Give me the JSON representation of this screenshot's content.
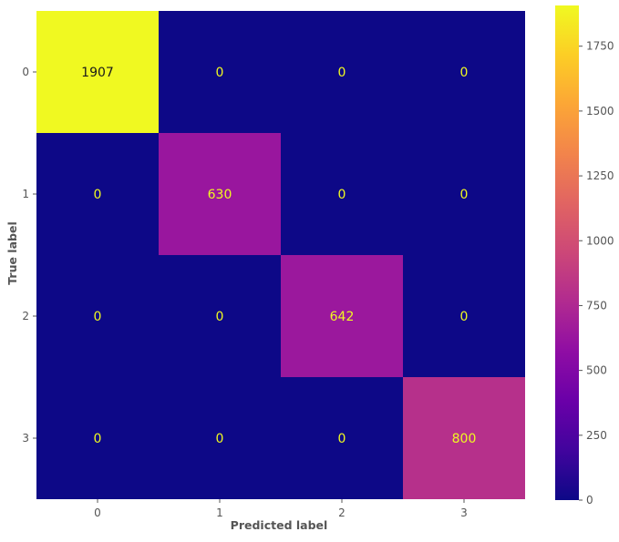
{
  "chart_data": {
    "type": "heatmap",
    "title": "",
    "xlabel": "Predicted label",
    "ylabel": "True label",
    "x_categories": [
      "0",
      "1",
      "2",
      "3"
    ],
    "y_categories": [
      "0",
      "1",
      "2",
      "3"
    ],
    "values": [
      [
        1907,
        0,
        0,
        0
      ],
      [
        0,
        630,
        0,
        0
      ],
      [
        0,
        0,
        642,
        0
      ],
      [
        0,
        0,
        0,
        800
      ]
    ],
    "colormap": "plasma",
    "color_range": [
      0,
      1907
    ],
    "colorbar_ticks": [
      0,
      250,
      500,
      750,
      1000,
      1250,
      1500,
      1750
    ],
    "grid": false,
    "colors": {
      "low_cell_text": "#f0f921",
      "high_cell_text": "#0d0887",
      "tick_text": "#555555",
      "axis_label": "#555555"
    }
  }
}
